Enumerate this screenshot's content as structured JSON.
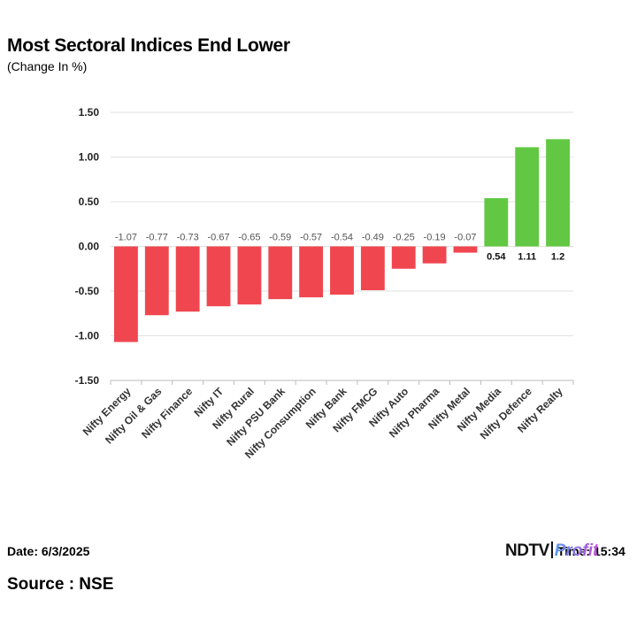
{
  "header": {
    "title": "Most Sectoral Indices End Lower",
    "subtitle": "(Change In %)"
  },
  "footer": {
    "date": "Date: 6/3/2025",
    "time": "Time: 15:34",
    "source": "Source : NSE",
    "logo_ndtv": "NDTV",
    "logo_profit": "Profit"
  },
  "colors": {
    "negative": "#f0464f",
    "positive": "#62c843",
    "grid": "#e2e2e2"
  },
  "chart_data": {
    "type": "bar",
    "title": "Most Sectoral Indices End Lower",
    "subtitle": "(Change In %)",
    "categories": [
      "Nifty Energy",
      "Nifty Oil & Gas",
      "Nifty Finance",
      "Nifty IT",
      "Nifty Rural",
      "Nifty PSU Bank",
      "Nifty Consumption",
      "Nifty Bank",
      "Nifty FMCG",
      "Nifty Auto",
      "Nifty Pharma",
      "Nifty Metal",
      "Nifty Media",
      "Nifty Defence",
      "Nifty Realty"
    ],
    "values": [
      -1.07,
      -0.77,
      -0.73,
      -0.67,
      -0.65,
      -0.59,
      -0.57,
      -0.54,
      -0.49,
      -0.25,
      -0.19,
      -0.07,
      0.54,
      1.11,
      1.2
    ],
    "data_labels": [
      "-1.07",
      "-0.77",
      "-0.73",
      "-0.67",
      "-0.65",
      "-0.59",
      "-0.57",
      "-0.54",
      "-0.49",
      "-0.25",
      "-0.19",
      "-0.07",
      "0.54",
      "1.11",
      "1.2"
    ],
    "yticks": [
      1.5,
      1.0,
      0.5,
      0.0,
      -0.5,
      -1.0,
      -1.5
    ],
    "ytick_labels": [
      "1.50",
      "1.00",
      "0.50",
      "0.00",
      "-0.50",
      "-1.00",
      "-1.50"
    ],
    "ylim": [
      -1.5,
      1.5
    ],
    "xlabel": "",
    "ylabel": "",
    "grid": true,
    "legend": "none"
  }
}
